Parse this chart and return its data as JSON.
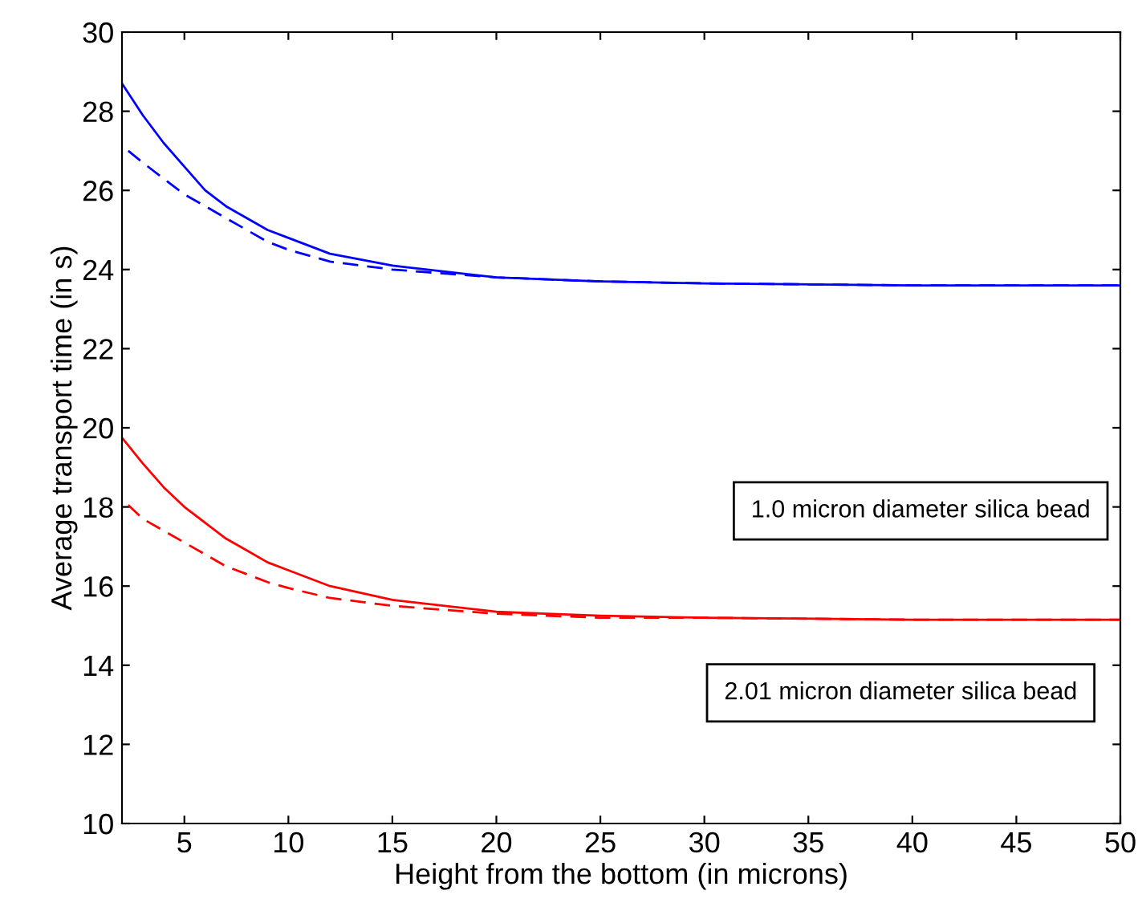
{
  "chart_data": {
    "type": "line",
    "xlabel": "Height from the bottom (in microns)",
    "ylabel": "Average transport time (in s)",
    "xlim": [
      2,
      50
    ],
    "ylim": [
      10,
      30
    ],
    "xticks": [
      5,
      10,
      15,
      20,
      25,
      30,
      35,
      40,
      45,
      50
    ],
    "yticks": [
      10,
      12,
      14,
      16,
      18,
      20,
      22,
      24,
      26,
      28,
      30
    ],
    "grid": false,
    "series": [
      {
        "color": "#0000ff",
        "line_style": "solid",
        "x": [
          2,
          3,
          4,
          5,
          6,
          7,
          8,
          9,
          10,
          12,
          15,
          20,
          25,
          30,
          40,
          50
        ],
        "values": [
          28.7,
          27.9,
          27.2,
          26.6,
          26.0,
          25.6,
          25.3,
          25.0,
          24.8,
          24.4,
          24.1,
          23.8,
          23.7,
          23.65,
          23.6,
          23.6
        ]
      },
      {
        "color": "#0000ff",
        "line_style": "dashed",
        "x": [
          2.3,
          3,
          4,
          5,
          6,
          7,
          8,
          9,
          10,
          12,
          15,
          20,
          25,
          30,
          40,
          50
        ],
        "values": [
          27.0,
          26.7,
          26.3,
          25.9,
          25.6,
          25.3,
          25.0,
          24.7,
          24.5,
          24.2,
          24.0,
          23.8,
          23.7,
          23.65,
          23.6,
          23.6
        ]
      },
      {
        "color": "#ff0000",
        "line_style": "solid",
        "x": [
          2,
          3,
          4,
          5,
          6,
          7,
          8,
          9,
          10,
          12,
          15,
          20,
          25,
          30,
          40,
          50
        ],
        "values": [
          19.75,
          19.1,
          18.5,
          18.0,
          17.6,
          17.2,
          16.9,
          16.6,
          16.4,
          16.0,
          15.65,
          15.35,
          15.25,
          15.2,
          15.15,
          15.15
        ]
      },
      {
        "color": "#ff0000",
        "line_style": "dashed",
        "x": [
          2.3,
          3,
          4,
          5,
          6,
          7,
          8,
          9,
          10,
          12,
          15,
          20,
          25,
          30,
          40,
          50
        ],
        "values": [
          18.05,
          17.7,
          17.4,
          17.1,
          16.8,
          16.5,
          16.3,
          16.1,
          15.95,
          15.7,
          15.5,
          15.3,
          15.2,
          15.2,
          15.15,
          15.15
        ]
      }
    ],
    "annotations": [
      "1.0 micron diameter silica bead",
      "2.01 micron diameter silica bead"
    ]
  }
}
